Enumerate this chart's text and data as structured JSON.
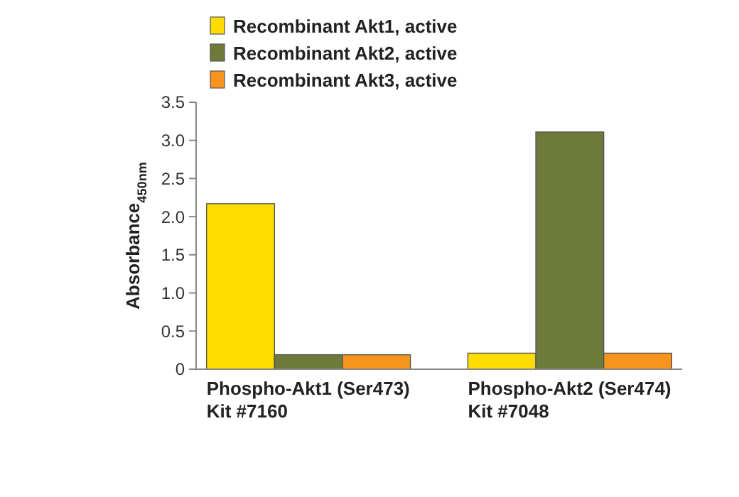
{
  "chart_data": {
    "type": "bar",
    "ylabel": "Absorbance$_{450nm}$",
    "categories": [
      "Phospho-Akt1 (Ser473)\nKit #7160",
      "Phospho-Akt2 (Ser474)\nKit #7048"
    ],
    "series": [
      {
        "name": "Recombinant Akt1, active",
        "color": "#ffdd00",
        "values": [
          2.17,
          0.21
        ]
      },
      {
        "name": "Recombinant Akt2, active",
        "color": "#6e7a3a",
        "values": [
          0.19,
          3.11
        ]
      },
      {
        "name": "Recombinant Akt3, active",
        "color": "#f7941d",
        "values": [
          0.19,
          0.21
        ]
      }
    ],
    "ylim": [
      0,
      3.5
    ],
    "yticks": [
      0,
      {
        "value": 0.5,
        "label": "0.5"
      },
      {
        "value": 1,
        "label": "1.0"
      },
      {
        "value": 1.5,
        "label": "1.5"
      },
      {
        "value": 2,
        "label": "2.0"
      },
      {
        "value": 2.5,
        "label": "2.5"
      },
      {
        "value": 3,
        "label": "3.0"
      },
      {
        "value": 3.5,
        "label": "3.5"
      }
    ],
    "grid": false,
    "legend": "top"
  }
}
